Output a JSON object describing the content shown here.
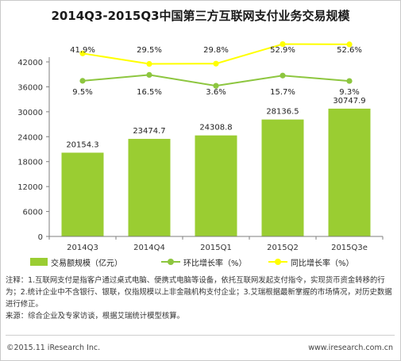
{
  "title": "2014Q3-2015Q3中国第三方互联网支付业务交易规模",
  "chart_data": {
    "type": "bar",
    "categories": [
      "2014Q3",
      "2014Q4",
      "2015Q1",
      "2015Q2",
      "2015Q3e"
    ],
    "ylim": [
      0,
      42000
    ],
    "yticks": [
      0,
      6000,
      12000,
      18000,
      24000,
      30000,
      36000,
      42000
    ],
    "grid": false,
    "legend_position": "bottom",
    "series": [
      {
        "name": "交易额规模（亿元）",
        "type": "bar",
        "color": "#9acd32",
        "values": [
          20154.3,
          23474.7,
          24308.8,
          28136.5,
          30747.9
        ],
        "labels": [
          "20154.3",
          "23474.7",
          "24308.8",
          "28136.5",
          "30747.9"
        ]
      },
      {
        "name": "环比增长率（%）",
        "type": "line",
        "color": "#8dc63f",
        "values": [
          9.5,
          16.5,
          3.6,
          15.7,
          9.3
        ],
        "labels": [
          "9.5%",
          "16.5%",
          "3.6%",
          "15.7%",
          "9.3%"
        ]
      },
      {
        "name": "同比增长率（%）",
        "type": "line",
        "color": "#ffff00",
        "values": [
          41.9,
          29.5,
          29.8,
          52.9,
          52.6
        ],
        "labels": [
          "41.9%",
          "29.5%",
          "29.8%",
          "52.9%",
          "52.6%"
        ]
      }
    ]
  },
  "notes": [
    "注释：1.互联网支付是指客户通过桌式电脑、便携式电脑等设备，依托互联网发起支付指令，实现货币资金转移的行为；2.统计企业中不含银行、银联，仅指规模以上非金融机构支付企业；3.艾瑞根据最新掌握的市场情况，对历史数据进行修正。",
    "来源：综合企业及专家访谈，根据艾瑞统计模型核算。"
  ],
  "footer": {
    "copyright": "©2015.11 iResearch Inc.",
    "website": "www.iresearch.com.cn"
  }
}
